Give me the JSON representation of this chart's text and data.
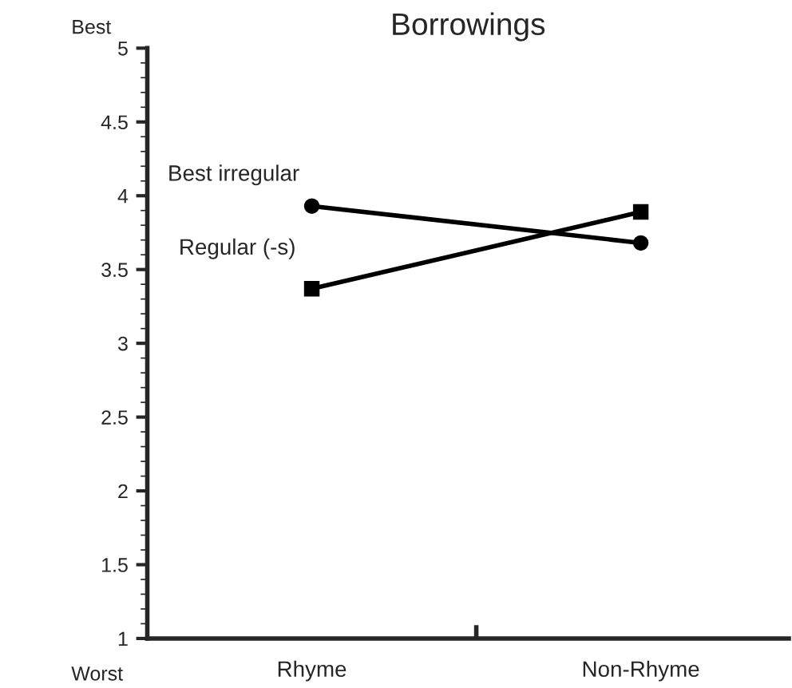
{
  "chart_data": {
    "type": "line",
    "title": "Borrowings",
    "categories": [
      "Rhyme",
      "Non-Rhyme"
    ],
    "series": [
      {
        "name": "Best irregular",
        "color": "#000000",
        "marker": "circle",
        "values": [
          3.93,
          3.68
        ]
      },
      {
        "name": "Regular (-s)",
        "color": "#000000",
        "marker": "square",
        "values": [
          3.37,
          3.89
        ]
      }
    ],
    "ylim": [
      1,
      5
    ],
    "yticks": [
      1,
      1.5,
      2,
      2.5,
      3,
      3.5,
      4,
      4.5,
      5
    ],
    "annotations": [
      "Best",
      "Worst"
    ],
    "grid": false,
    "legend": false,
    "line_style": "solid"
  }
}
